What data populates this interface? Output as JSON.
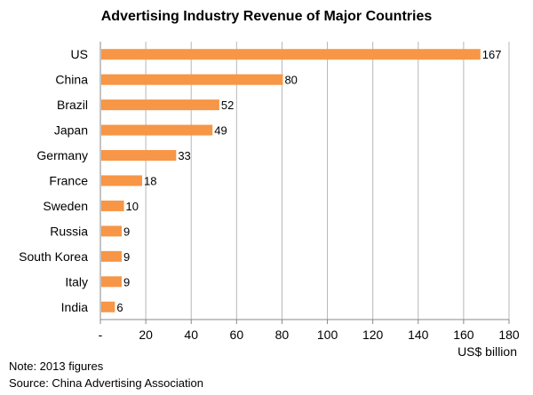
{
  "chart_data": {
    "type": "bar",
    "orientation": "horizontal",
    "title": "Advertising Industry Revenue of Major Countries",
    "xlabel": "US$ billion",
    "ylabel": "",
    "categories": [
      "US",
      "China",
      "Brazil",
      "Japan",
      "Germany",
      "France",
      "Sweden",
      "Russia",
      "South Korea",
      "Italy",
      "India"
    ],
    "values": [
      167,
      80,
      52,
      49,
      33,
      18,
      10,
      9,
      9,
      9,
      6
    ],
    "xlim": [
      0,
      180
    ],
    "x_ticks": [
      0,
      20,
      40,
      60,
      80,
      100,
      120,
      140,
      160,
      180
    ],
    "x_tick_labels": [
      "-",
      "20",
      "40",
      "60",
      "80",
      "100",
      "120",
      "140",
      "160",
      "180"
    ],
    "grid": "vertical",
    "bar_color": "#F79646",
    "legend": "none",
    "data_labels": true
  },
  "notes": {
    "note": "Note: 2013 figures",
    "source": "Source: China Advertising Association"
  }
}
